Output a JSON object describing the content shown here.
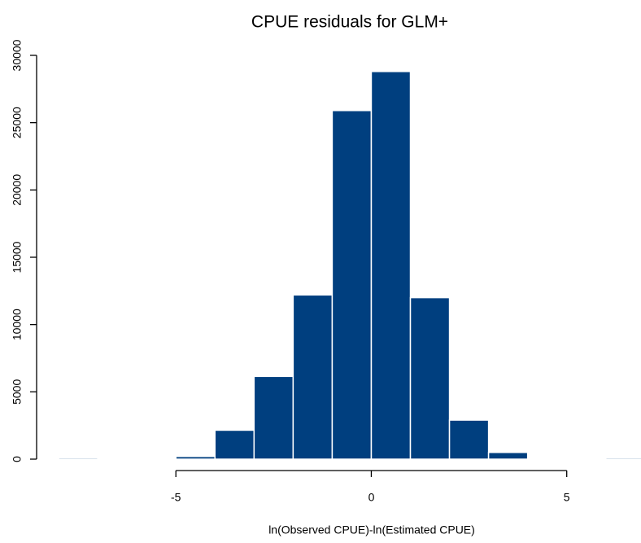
{
  "chart_data": {
    "type": "histogram",
    "title": "CPUE residuals for GLM+",
    "xlabel": "ln(Observed CPUE)-ln(Estimated CPUE)",
    "bins": [
      -8,
      -7,
      -6,
      -5,
      -4,
      -3,
      -2,
      -1,
      0,
      1,
      2,
      3,
      4,
      5,
      6,
      7
    ],
    "values": [
      100,
      0,
      0,
      200,
      2150,
      6150,
      12200,
      25900,
      28800,
      12000,
      2900,
      500,
      0,
      0,
      100
    ],
    "color": "#003f7f",
    "xlim": [
      -9.5,
      6.9
    ],
    "xticks": [
      -5,
      0,
      5
    ],
    "ylim": [
      0,
      30000
    ],
    "yticks": [
      0,
      5000,
      10000,
      15000,
      20000,
      25000,
      30000
    ]
  }
}
